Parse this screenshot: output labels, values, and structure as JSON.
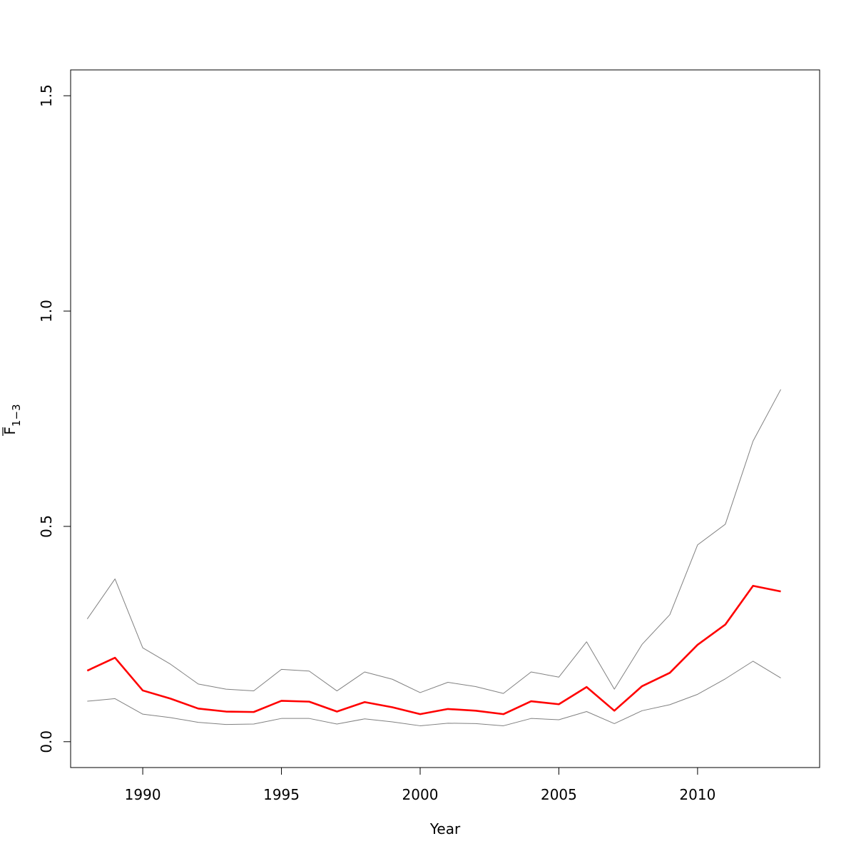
{
  "chart_data": {
    "type": "line",
    "title": "",
    "xlabel": "Year",
    "ylabel": {
      "main": "F",
      "subscript": "1−3",
      "overline": true
    },
    "xlim": [
      1987.4,
      2014.4
    ],
    "ylim": [
      -0.06,
      1.56
    ],
    "x_ticks": [
      1990,
      1995,
      2000,
      2005,
      2010
    ],
    "x_tick_labels": [
      "1990",
      "1995",
      "2000",
      "2005",
      "2010"
    ],
    "y_ticks": [
      0.0,
      0.5,
      1.0,
      1.5
    ],
    "y_tick_labels": [
      "0.0",
      "0.5",
      "1.0",
      "1.5"
    ],
    "grid": false,
    "legend": "none",
    "x": [
      1988,
      1989,
      1990,
      1991,
      1992,
      1993,
      1994,
      1995,
      1996,
      1997,
      1998,
      1999,
      2000,
      2001,
      2002,
      2003,
      2004,
      2005,
      2006,
      2007,
      2008,
      2009,
      2010,
      2011,
      2012,
      2013
    ],
    "series": [
      {
        "role": "estimate",
        "color": "#ff0000",
        "values": [
          0.165,
          0.195,
          0.119,
          0.1,
          0.077,
          0.07,
          0.069,
          0.095,
          0.093,
          0.07,
          0.092,
          0.08,
          0.064,
          0.076,
          0.072,
          0.064,
          0.094,
          0.087,
          0.127,
          0.072,
          0.129,
          0.16,
          0.225,
          0.272,
          0.362,
          0.349
        ]
      },
      {
        "role": "upper",
        "color": "#808080",
        "values": [
          0.285,
          0.378,
          0.218,
          0.18,
          0.134,
          0.122,
          0.118,
          0.168,
          0.164,
          0.118,
          0.162,
          0.145,
          0.114,
          0.138,
          0.128,
          0.112,
          0.162,
          0.15,
          0.232,
          0.122,
          0.226,
          0.295,
          0.457,
          0.505,
          0.698,
          0.818
        ]
      },
      {
        "role": "lower",
        "color": "#808080",
        "values": [
          0.094,
          0.1,
          0.064,
          0.056,
          0.045,
          0.04,
          0.041,
          0.054,
          0.054,
          0.041,
          0.053,
          0.046,
          0.037,
          0.043,
          0.042,
          0.037,
          0.054,
          0.051,
          0.07,
          0.042,
          0.072,
          0.086,
          0.11,
          0.146,
          0.187,
          0.148
        ]
      }
    ]
  }
}
